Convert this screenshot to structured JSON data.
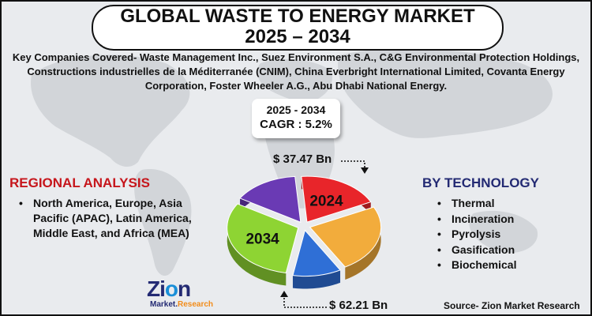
{
  "title": {
    "line1": "GLOBAL WASTE TO ENERGY MARKET",
    "line2": "2025 – 2034"
  },
  "key_companies": "Key Companies Covered- Waste Management Inc., Suez Environment S.A., C&G Environmental Protection Holdings, Constructions industrielles de la Méditerranée (CNIM), China Everbright International Limited, Covanta Energy Corporation, Foster Wheeler A.G., Abu Dhabi National Energy.",
  "cagr_box": {
    "period": "2025 - 2034",
    "cagr": "CAGR : 5.2%"
  },
  "regional": {
    "title": "REGIONAL ANALYSIS",
    "item": "North America, Europe, Asia Pacific (APAC), Latin America, Middle East, and Africa (MEA)"
  },
  "technology": {
    "title": "BY TECHNOLOGY",
    "items": [
      "Thermal",
      "Incineration",
      "Pyrolysis",
      "Gasification",
      "Biochemical"
    ]
  },
  "source": "Source- Zion Market Research",
  "logo": {
    "word_a": "Zi",
    "word_o": "o",
    "word_b": "n",
    "sub_a": "Market.",
    "sub_b": "Research"
  },
  "chart_data": {
    "type": "pie",
    "style": "3d-exploded",
    "slice_labels": [
      "2024",
      "",
      "",
      "2034",
      ""
    ],
    "slice_colors": [
      "#e8252a",
      "#f2ac3c",
      "#2f6fd6",
      "#8ed433",
      "#6a3ab4"
    ],
    "slice_fractions": [
      0.19,
      0.24,
      0.11,
      0.31,
      0.15
    ],
    "values": [
      {
        "year": "2024",
        "value_bn_usd": 37.47,
        "label": "$ 37.47 Bn"
      },
      {
        "year": "2034",
        "value_bn_usd": 62.21,
        "label": "$ 62.21 Bn"
      }
    ],
    "colors": {
      "title_red": "#c6161c",
      "title_navy": "#232a73"
    }
  }
}
